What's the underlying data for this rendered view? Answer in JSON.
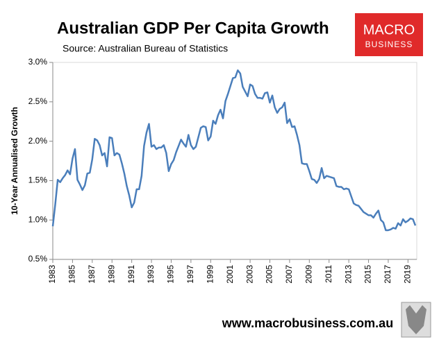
{
  "chart_data": {
    "type": "line",
    "title": "Australian GDP Per Capita Growth",
    "subtitle": "Source: Australian Bureau of Statistics",
    "y_label": "10-Year Annualised Growth",
    "logo": {
      "line1": "MACRO",
      "line2": "BUSINESS"
    },
    "footer": "www.macrobusiness.com.au",
    "xlim": [
      1983,
      2019.75
    ],
    "xticks": [
      1983,
      1985,
      1987,
      1989,
      1991,
      1993,
      1995,
      1997,
      1999,
      2001,
      2003,
      2005,
      2007,
      2009,
      2011,
      2013,
      2015,
      2017,
      2019
    ],
    "ylim": [
      0.5,
      3.0
    ],
    "yticks": [
      {
        "value": 0.5,
        "label": "0.5%"
      },
      {
        "value": 1.0,
        "label": "1.0%"
      },
      {
        "value": 1.5,
        "label": "1.5%"
      },
      {
        "value": 2.0,
        "label": "2.0%"
      },
      {
        "value": 2.5,
        "label": "2.5%"
      },
      {
        "value": 3.0,
        "label": "3.0%"
      }
    ],
    "grid": false,
    "x": [
      1983,
      1983.25,
      1983.5,
      1983.75,
      1984,
      1984.25,
      1984.5,
      1984.75,
      1985,
      1985.25,
      1985.5,
      1985.75,
      1986,
      1986.25,
      1986.5,
      1986.75,
      1987,
      1987.25,
      1987.5,
      1987.75,
      1988,
      1988.25,
      1988.5,
      1988.75,
      1989,
      1989.25,
      1989.5,
      1989.75,
      1990,
      1990.25,
      1990.5,
      1990.75,
      1991,
      1991.25,
      1991.5,
      1991.75,
      1992,
      1992.25,
      1992.5,
      1992.75,
      1993,
      1993.25,
      1993.5,
      1993.75,
      1994,
      1994.25,
      1994.5,
      1994.75,
      1995,
      1995.25,
      1995.5,
      1995.75,
      1996,
      1996.25,
      1996.5,
      1996.75,
      1997,
      1997.25,
      1997.5,
      1997.75,
      1998,
      1998.25,
      1998.5,
      1998.75,
      1999,
      1999.25,
      1999.5,
      1999.75,
      2000,
      2000.25,
      2000.5,
      2000.75,
      2001,
      2001.25,
      2001.5,
      2001.75,
      2002,
      2002.25,
      2002.5,
      2002.75,
      2003,
      2003.25,
      2003.5,
      2003.75,
      2004,
      2004.25,
      2004.5,
      2004.75,
      2005,
      2005.25,
      2005.5,
      2005.75,
      2006,
      2006.25,
      2006.5,
      2006.75,
      2007,
      2007.25,
      2007.5,
      2007.75,
      2008,
      2008.25,
      2008.5,
      2008.75,
      2009,
      2009.25,
      2009.5,
      2009.75,
      2010,
      2010.25,
      2010.5,
      2010.75,
      2011,
      2011.25,
      2011.5,
      2011.75,
      2012,
      2012.25,
      2012.5,
      2012.75,
      2013,
      2013.25,
      2013.5,
      2013.75,
      2014,
      2014.25,
      2014.5,
      2014.75,
      2015,
      2015.25,
      2015.5,
      2015.75,
      2016,
      2016.25,
      2016.5,
      2016.75,
      2017,
      2017.25,
      2017.5,
      2017.75,
      2018,
      2018.25,
      2018.5,
      2018.75,
      2019,
      2019.25,
      2019.5,
      2019.75
    ],
    "series": [
      {
        "name": "GDP per capita growth",
        "color": "#4a7ebb",
        "values": [
          0.92,
          1.2,
          1.51,
          1.48,
          1.53,
          1.57,
          1.63,
          1.58,
          1.78,
          1.9,
          1.51,
          1.45,
          1.38,
          1.44,
          1.59,
          1.6,
          1.77,
          2.03,
          2.01,
          1.95,
          1.82,
          1.85,
          1.68,
          2.05,
          2.04,
          1.82,
          1.85,
          1.83,
          1.72,
          1.59,
          1.43,
          1.31,
          1.16,
          1.22,
          1.39,
          1.39,
          1.56,
          1.94,
          2.11,
          2.22,
          1.93,
          1.95,
          1.9,
          1.92,
          1.92,
          1.95,
          1.85,
          1.62,
          1.71,
          1.76,
          1.86,
          1.94,
          2.02,
          1.97,
          1.93,
          2.08,
          1.95,
          1.9,
          1.93,
          2.05,
          2.17,
          2.19,
          2.18,
          2.01,
          2.06,
          2.26,
          2.22,
          2.33,
          2.4,
          2.29,
          2.51,
          2.6,
          2.7,
          2.8,
          2.81,
          2.9,
          2.86,
          2.69,
          2.63,
          2.57,
          2.72,
          2.7,
          2.6,
          2.55,
          2.55,
          2.54,
          2.61,
          2.62,
          2.49,
          2.58,
          2.43,
          2.36,
          2.41,
          2.43,
          2.49,
          2.23,
          2.28,
          2.18,
          2.19,
          2.08,
          1.95,
          1.72,
          1.71,
          1.71,
          1.62,
          1.52,
          1.51,
          1.47,
          1.52,
          1.66,
          1.53,
          1.56,
          1.55,
          1.54,
          1.53,
          1.43,
          1.42,
          1.42,
          1.39,
          1.4,
          1.39,
          1.3,
          1.21,
          1.19,
          1.18,
          1.14,
          1.1,
          1.08,
          1.06,
          1.06,
          1.03,
          1.08,
          1.12,
          1.0,
          0.97,
          0.87,
          0.87,
          0.88,
          0.9,
          0.89,
          0.96,
          0.93,
          1.01,
          0.97,
          0.99,
          1.02,
          1.01,
          0.93
        ]
      }
    ]
  }
}
